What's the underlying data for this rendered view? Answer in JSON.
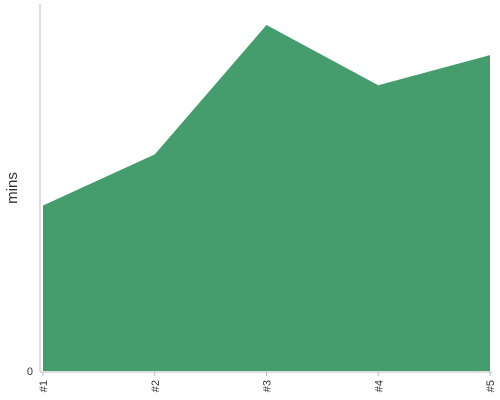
{
  "chart_data": {
    "type": "area",
    "categories": [
      "#1",
      "#2",
      "#3",
      "#4",
      "#5"
    ],
    "values": [
      55,
      72,
      115,
      95,
      105
    ],
    "ylabel": "mins",
    "xlabel": "",
    "ylim": [
      0,
      120
    ],
    "y_ticks": [
      0
    ],
    "y_tick_labels": [
      "0"
    ],
    "grid": false,
    "legend": "none",
    "color": "#459c6c",
    "axis_color": "#bbbbbb"
  }
}
